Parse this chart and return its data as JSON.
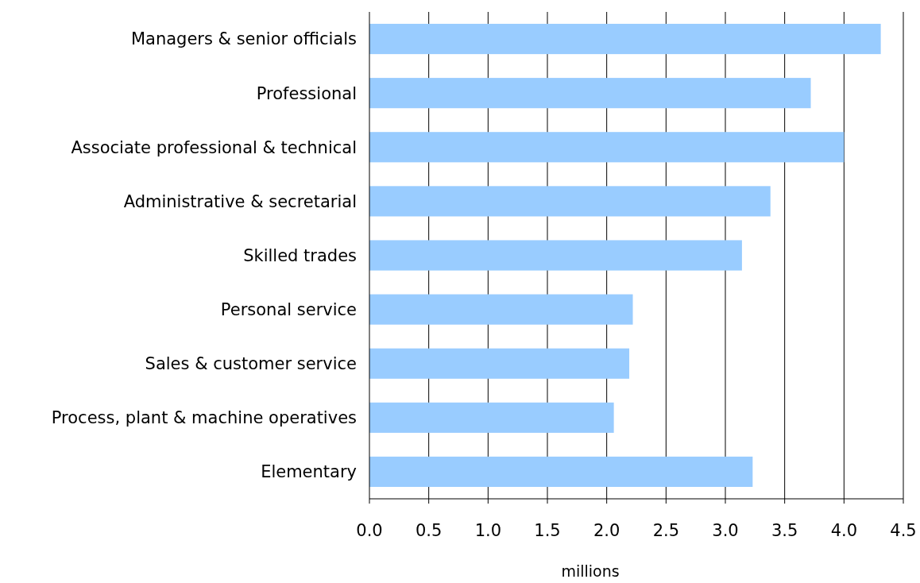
{
  "chart_data": {
    "type": "bar",
    "orientation": "horizontal",
    "xlabel": "millions",
    "categories": [
      "Managers & senior officials",
      "Professional",
      "Associate professional & technical",
      "Administrative & secretarial",
      "Skilled trades",
      "Personal service",
      "Sales & customer service",
      "Process, plant & machine operatives",
      "Elementary"
    ],
    "values": [
      4.31,
      3.72,
      4.0,
      3.38,
      3.14,
      2.22,
      2.19,
      2.06,
      3.23
    ],
    "color": "#99ccff",
    "xlim": [
      0,
      4.5
    ],
    "xticks": [
      {
        "value": 0,
        "label": "0.0"
      },
      0.5,
      {
        "value": 1,
        "label": "1.0"
      },
      1.5,
      {
        "value": 2,
        "label": "2.0"
      },
      2.5,
      {
        "value": 3,
        "label": "3.0"
      },
      3.5,
      {
        "value": 4,
        "label": "4.0"
      },
      4.5
    ],
    "grid": "x"
  }
}
